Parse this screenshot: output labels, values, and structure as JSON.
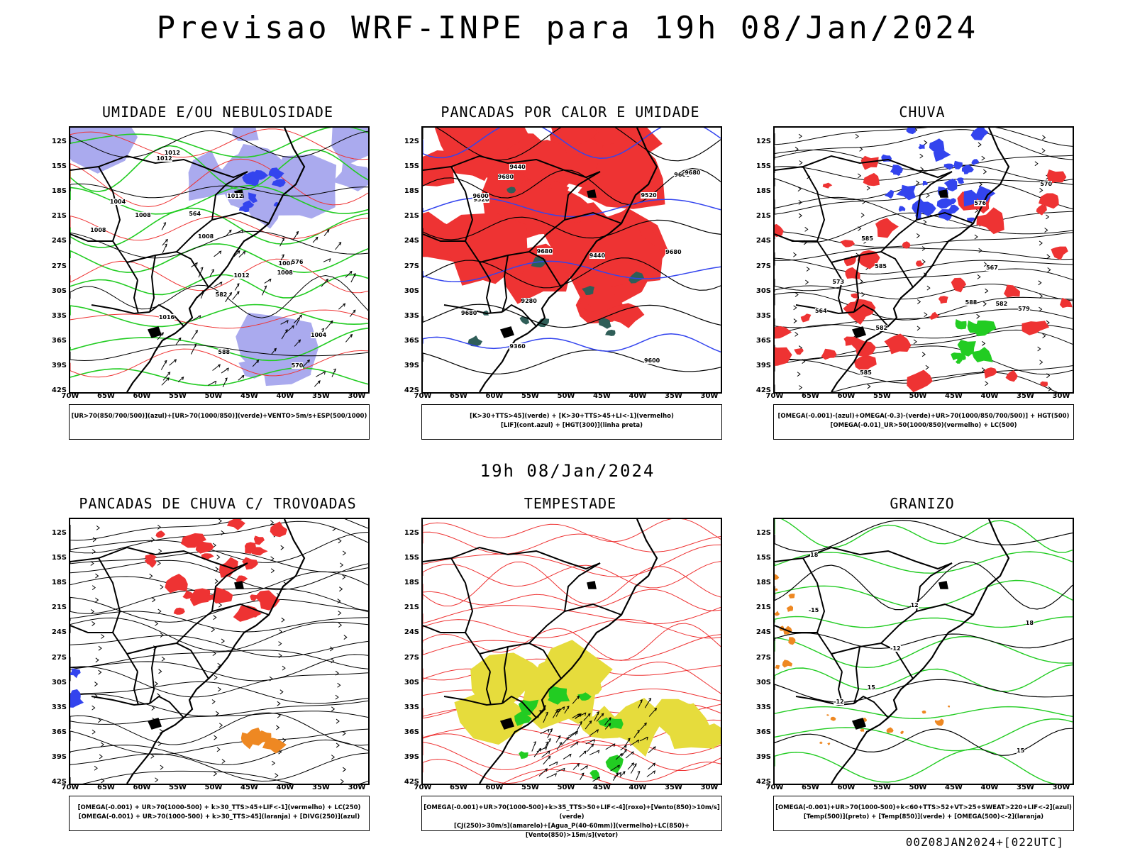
{
  "title": "Previsao WRF-INPE  para 19h 08/Jan/2024",
  "mid_title": "19h 08/Jan/2024",
  "footer": "00Z08JAN2024+[022UTC]",
  "lat_labels": [
    "12S",
    "15S",
    "18S",
    "21S",
    "24S",
    "27S",
    "30S",
    "33S",
    "36S",
    "39S",
    "42S"
  ],
  "lon_labels": [
    "70W",
    "65W",
    "60W",
    "55W",
    "50W",
    "45W",
    "40W",
    "35W",
    "30W"
  ],
  "colors": {
    "red": "#ee3333",
    "blue": "#3344ee",
    "green": "#22cc22",
    "lavender": "#aaaaee",
    "yellow": "#e6dc3c",
    "orange": "#ee8822",
    "teal": "#2f5e58",
    "black": "#000000"
  },
  "panels": [
    {
      "title": "UMIDADE E/OU NEBULOSIDADE",
      "legend": [
        "[UR>70(850/700/500)](azul)+[UR>70(1000/850)](verde)+VENTO>5m/s+ESP(500/1000)"
      ],
      "contour_labels": [
        "1008",
        "1004",
        "1008",
        "1012",
        "1016",
        "1012",
        "1008",
        "1012",
        "1004",
        "1008",
        "1012",
        "1008",
        "570",
        "576",
        "582",
        "588",
        "564"
      ]
    },
    {
      "title": "PANCADAS POR CALOR E UMIDADE",
      "legend": [
        "[K>30+TTS>45](verde) + [K>30+TTS>45+LI<-1](vermelho)",
        "[LIF](cont.azul) + [HGT(300)](linha preta)"
      ],
      "contour_labels": [
        "9680",
        "9680",
        "9680",
        "9600",
        "9680",
        "9520",
        "9440",
        "9360",
        "9280",
        "9600",
        "9520",
        "9440",
        "9600",
        "9680"
      ]
    },
    {
      "title": "CHUVA",
      "legend": [
        "[OMEGA(-0.001)-(azul)+OMEGA(-0.3)-(verde)+UR>70(1000/850/700/500)] + HGT(500)",
        "[OMEGA(-0.01)_UR>50(1000/850)(vermelho) + LC(500)"
      ],
      "contour_labels": [
        "585",
        "588",
        "585",
        "582",
        "579",
        "576",
        "573",
        "570",
        "567",
        "564",
        "585",
        "582"
      ]
    },
    {
      "title": "PANCADAS DE CHUVA C/ TROVOADAS",
      "legend": [
        "[OMEGA(-0.001) + UR>70(1000-500) + k>30_TTS>45+LIF<-1](vermelho) + LC(250)",
        "[OMEGA(-0.001) + UR>70(1000-500) + k>30_TTS>45](laranja) + [DIVG(250)](azul)"
      ],
      "contour_labels": []
    },
    {
      "title": "TEMPESTADE",
      "legend": [
        "[OMEGA(-0.001)+UR>70(1000-500)+k>35_TTS>50+LIF<-4](roxo)+[Vento(850)>10m/s](verde)",
        "[CJ(250)>30m/s](amarelo)+[Agua_P(40-60mm)](vermelho)+LC(850)+[Vento(850)>15m/s](vetor)"
      ],
      "contour_labels": []
    },
    {
      "title": "GRANIZO",
      "legend": [
        "[OMEGA(-0.001)+UR>70(1000-500)+k<60+TTS>52+VT>25+SWEAT>220+LIF<-2](azul)",
        "[Temp(500)](preto) + [Temp(850)](verde) + [OMEGA(500)<-2](laranja)"
      ],
      "contour_labels": [
        "-12",
        "-15",
        "-12",
        "18",
        "15",
        "12",
        "15",
        "18"
      ]
    }
  ]
}
